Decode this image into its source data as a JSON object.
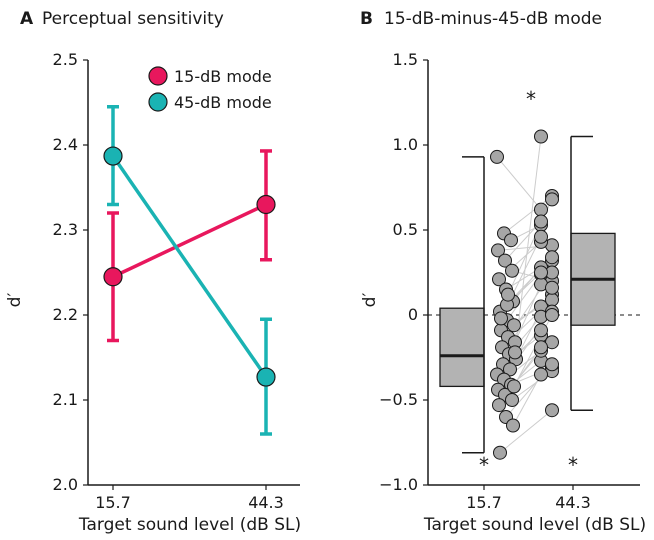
{
  "colors": {
    "mode15": "#e8175d",
    "mode45": "#1ab3b3",
    "box_fill": "#b3b3b3",
    "point_fill": "#a6a6a6",
    "pair_line": "#cccccc"
  },
  "chart_data": [
    {
      "type": "line",
      "panel_letter": "A",
      "title": "Perceptual sensitivity",
      "xlabel": "Target sound level (dB SL)",
      "ylabel": "d′",
      "categories": [
        "15.7",
        "44.3"
      ],
      "ylim": [
        2.0,
        2.5
      ],
      "yticks": [
        "2.0",
        "2.1",
        "2.2",
        "2.3",
        "2.4",
        "2.5"
      ],
      "legend_position": "top-right",
      "series": [
        {
          "name": "15-dB mode",
          "color": "#e8175d",
          "values": [
            2.245,
            2.33
          ],
          "err_lower": [
            2.17,
            2.265
          ],
          "err_upper": [
            2.32,
            2.393
          ]
        },
        {
          "name": "45-dB mode",
          "color": "#1ab3b3",
          "values": [
            2.387,
            2.127
          ],
          "err_lower": [
            2.33,
            2.06
          ],
          "err_upper": [
            2.445,
            2.195
          ]
        }
      ]
    },
    {
      "type": "box",
      "panel_letter": "B",
      "title": "15-dB-minus-45-dB mode",
      "xlabel": "Target sound level (dB SL)",
      "ylabel": "d′",
      "categories": [
        "15.7",
        "44.3"
      ],
      "ylim": [
        -1.0,
        1.5
      ],
      "yticks": [
        "−1.0",
        "−0.5",
        "0",
        "0.5",
        "1.0",
        "1.5"
      ],
      "zero_line": true,
      "significance_marks": [
        "*",
        "*",
        "*"
      ],
      "boxes": [
        {
          "category": "15.7",
          "median": -0.24,
          "q1": -0.42,
          "q3": 0.04,
          "whisker_low": -0.81,
          "whisker_high": 0.93
        },
        {
          "category": "44.3",
          "median": 0.21,
          "q1": -0.06,
          "q3": 0.48,
          "whisker_low": -0.56,
          "whisker_high": 1.05
        }
      ],
      "paired_points": [
        [
          0.93,
          0.62
        ],
        [
          0.48,
          0.7
        ],
        [
          0.44,
          0.53
        ],
        [
          0.38,
          0.41
        ],
        [
          0.32,
          0.55
        ],
        [
          0.26,
          0.2
        ],
        [
          0.21,
          0.43
        ],
        [
          0.15,
          0.32
        ],
        [
          0.08,
          0.28
        ],
        [
          0.02,
          0.34
        ],
        [
          -0.03,
          0.24
        ],
        [
          -0.06,
          0.12
        ],
        [
          -0.09,
          0.05
        ],
        [
          -0.13,
          0.25
        ],
        [
          -0.16,
          0.18
        ],
        [
          -0.19,
          0.09
        ],
        [
          -0.23,
          -0.01
        ],
        [
          -0.26,
          0.16
        ],
        [
          -0.29,
          -0.12
        ],
        [
          -0.32,
          0.02
        ],
        [
          -0.35,
          -0.09
        ],
        [
          -0.38,
          -0.16
        ],
        [
          -0.41,
          -0.27
        ],
        [
          -0.44,
          -0.31
        ],
        [
          -0.47,
          -0.21
        ],
        [
          -0.5,
          -0.33
        ],
        [
          -0.53,
          -0.19
        ],
        [
          -0.6,
          -0.29
        ],
        [
          -0.65,
          -0.35
        ],
        [
          -0.81,
          -0.56
        ],
        [
          0.06,
          0.25
        ],
        [
          -0.42,
          0.0
        ],
        [
          -0.02,
          0.46
        ],
        [
          0.12,
          0.68
        ],
        [
          -0.22,
          1.05
        ]
      ]
    }
  ]
}
